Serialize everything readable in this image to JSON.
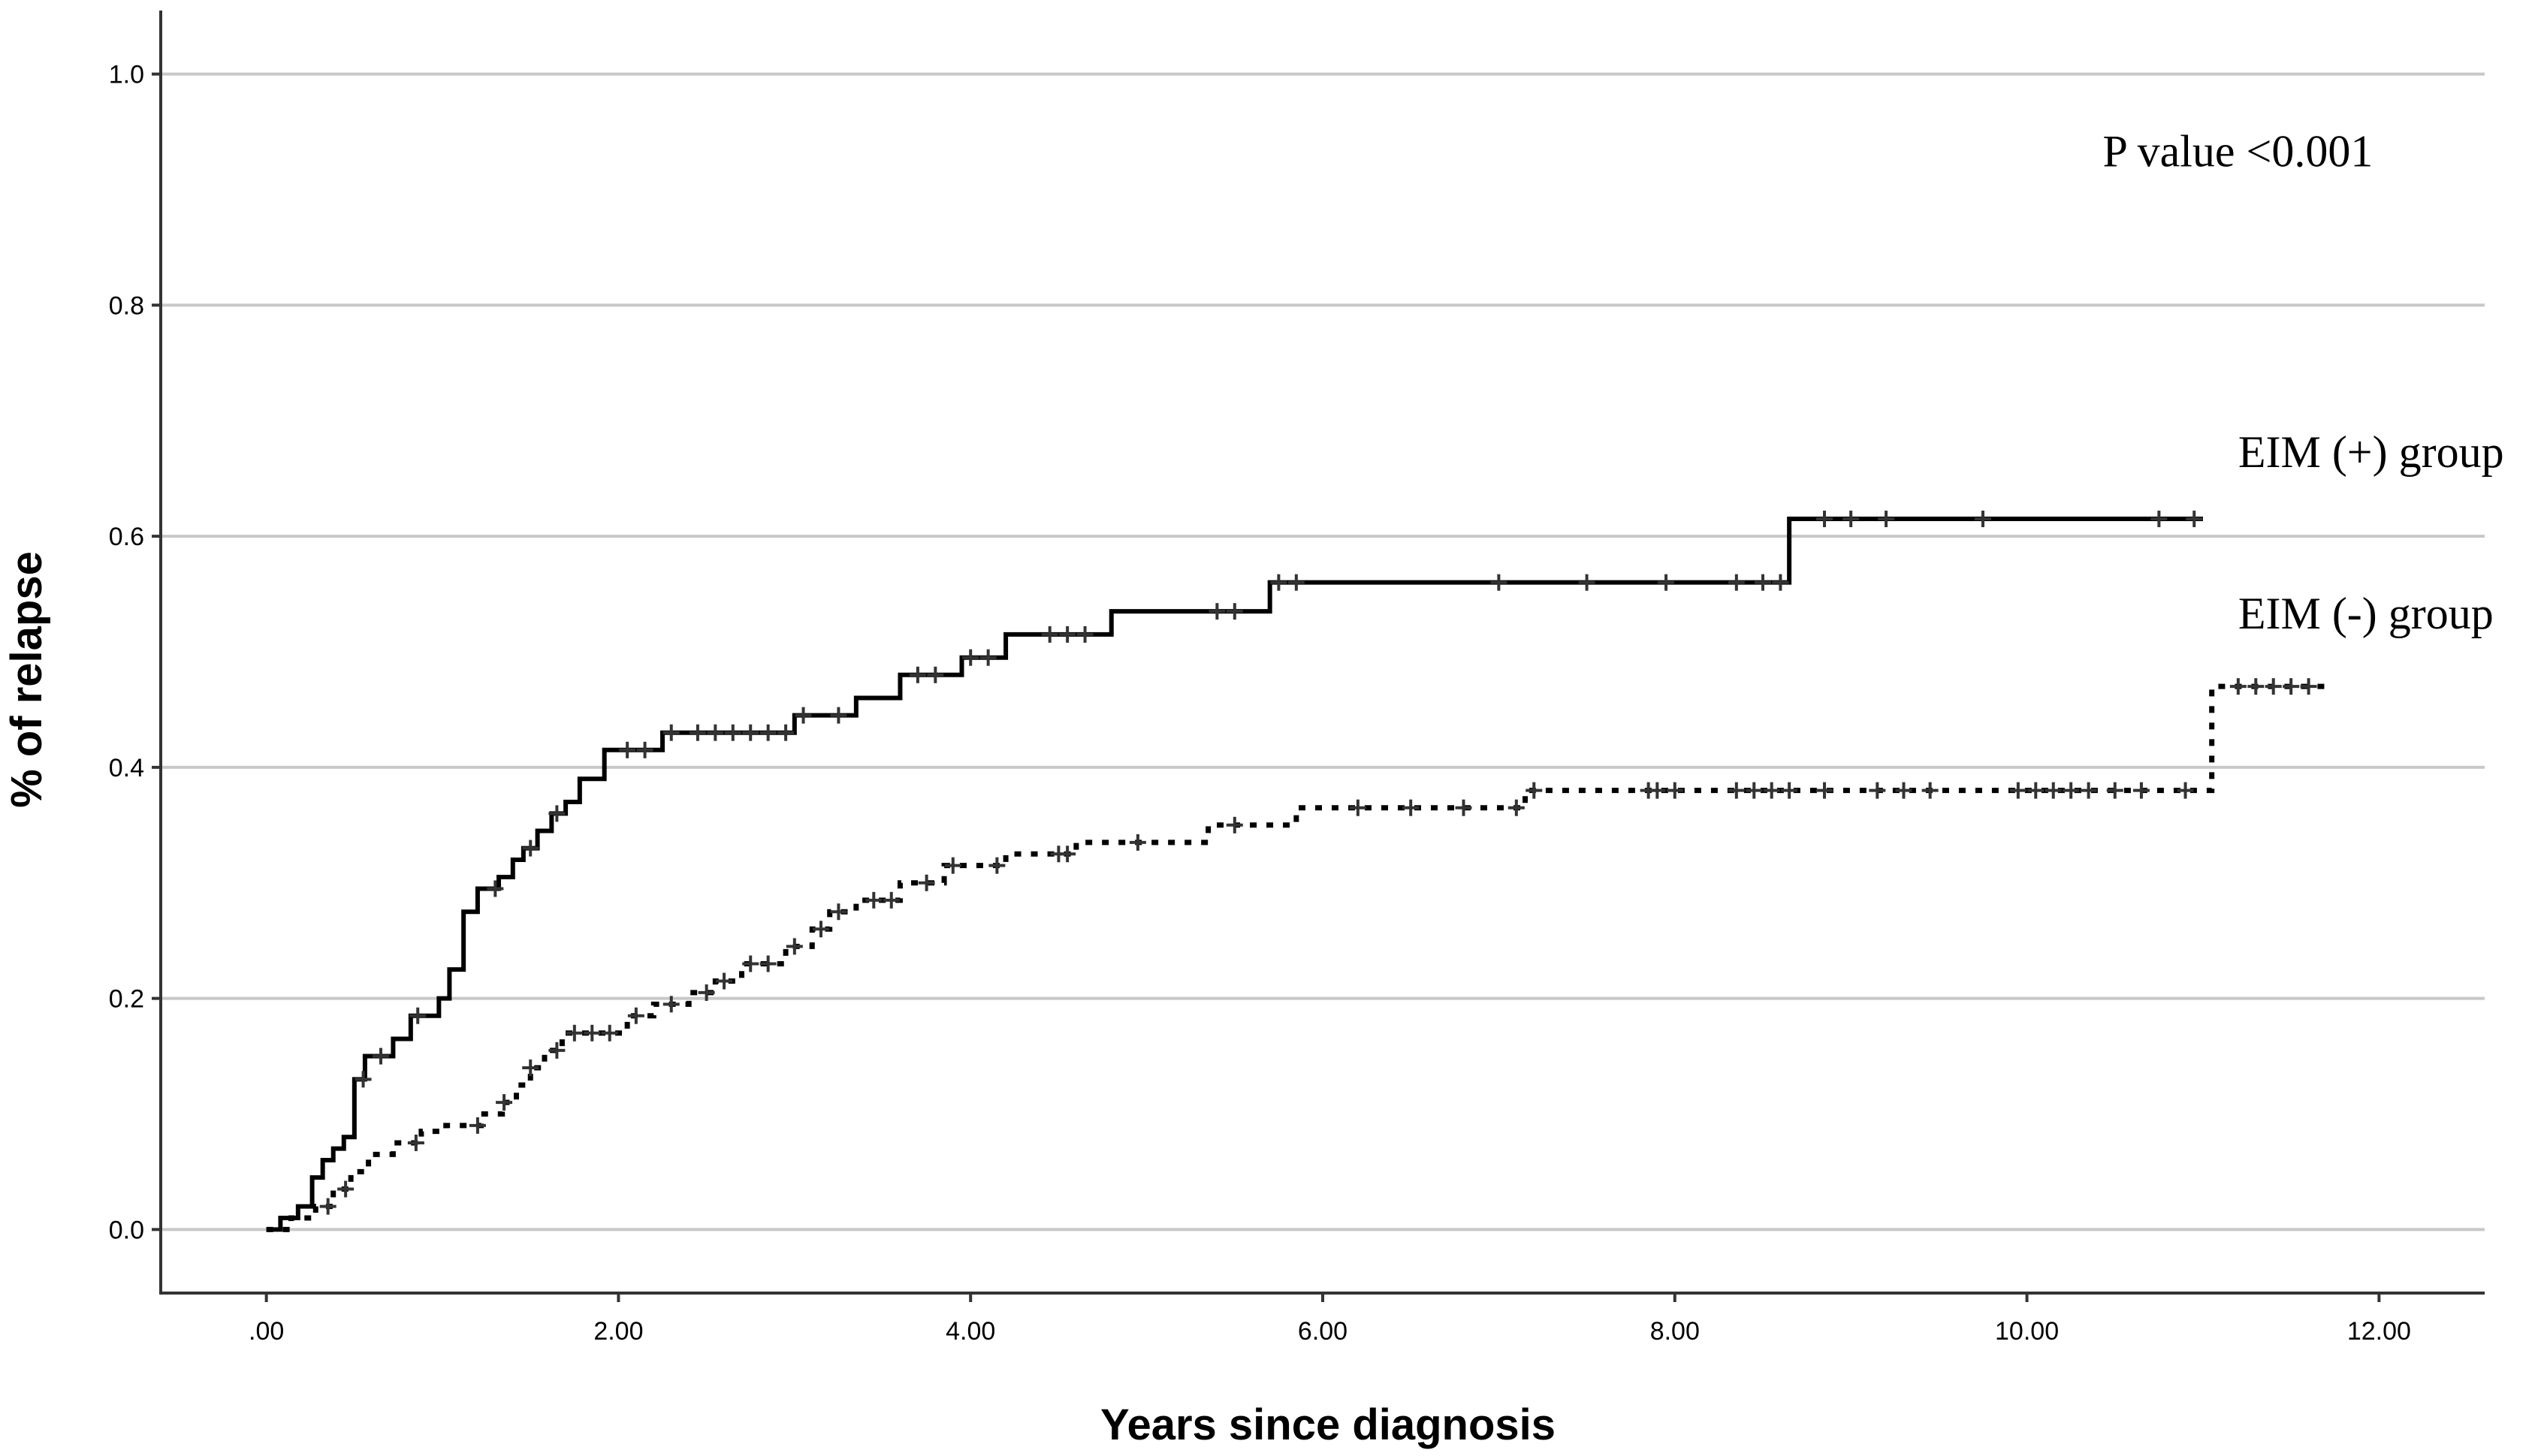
{
  "chart_data": {
    "type": "line",
    "title": "",
    "xlabel": "Years since diagnosis",
    "ylabel": "% of relapse",
    "xlim": [
      -0.6,
      12.6
    ],
    "ylim": [
      -0.055,
      1.055
    ],
    "xticks": [
      0,
      2,
      4,
      6,
      8,
      10,
      12
    ],
    "xtick_labels": [
      ".00",
      "2.00",
      "4.00",
      "6.00",
      "8.00",
      "10.00",
      "12.00"
    ],
    "yticks": [
      0,
      0.2,
      0.4,
      0.6,
      0.8,
      1.0
    ],
    "ytick_labels": [
      "0.0",
      "0.2",
      "0.4",
      "0.6",
      "0.8",
      "1.0"
    ],
    "grid": "horizontal",
    "annotations": [
      {
        "text": "P value <0.001",
        "x": 12.0,
        "y": 0.92
      },
      {
        "text": "EIM (+) group",
        "x": 11.2,
        "y": 0.66
      },
      {
        "text": "EIM (-) group",
        "x": 11.2,
        "y": 0.52
      }
    ],
    "series": [
      {
        "label_ref": "EIM (+) group",
        "style": "solid",
        "color": "#000000",
        "steps": [
          [
            0,
            0
          ],
          [
            0.08,
            0.01
          ],
          [
            0.18,
            0.02
          ],
          [
            0.26,
            0.045
          ],
          [
            0.32,
            0.06
          ],
          [
            0.38,
            0.07
          ],
          [
            0.44,
            0.08
          ],
          [
            0.5,
            0.13
          ],
          [
            0.56,
            0.15
          ],
          [
            0.72,
            0.165
          ],
          [
            0.82,
            0.185
          ],
          [
            0.98,
            0.2
          ],
          [
            1.04,
            0.225
          ],
          [
            1.12,
            0.275
          ],
          [
            1.2,
            0.295
          ],
          [
            1.32,
            0.305
          ],
          [
            1.4,
            0.32
          ],
          [
            1.46,
            0.33
          ],
          [
            1.54,
            0.345
          ],
          [
            1.62,
            0.36
          ],
          [
            1.7,
            0.37
          ],
          [
            1.78,
            0.39
          ],
          [
            1.92,
            0.415
          ],
          [
            2.25,
            0.43
          ],
          [
            3.0,
            0.445
          ],
          [
            3.35,
            0.46
          ],
          [
            3.6,
            0.48
          ],
          [
            3.95,
            0.495
          ],
          [
            4.2,
            0.515
          ],
          [
            4.8,
            0.535
          ],
          [
            5.7,
            0.56
          ],
          [
            8.65,
            0.615
          ],
          [
            11.0,
            0.615
          ]
        ],
        "censor_x": [
          0.55,
          0.65,
          0.86,
          1.3,
          1.5,
          1.65,
          2.05,
          2.15,
          2.3,
          2.45,
          2.55,
          2.65,
          2.75,
          2.85,
          2.95,
          3.05,
          3.25,
          3.7,
          3.8,
          4.0,
          4.1,
          4.45,
          4.55,
          4.65,
          5.4,
          5.5,
          5.75,
          5.85,
          7.0,
          7.5,
          7.95,
          8.35,
          8.5,
          8.6,
          8.85,
          9.0,
          9.2,
          9.75,
          10.75,
          10.95
        ]
      },
      {
        "label_ref": "EIM (-) group",
        "style": "dotted",
        "color": "#000000",
        "steps": [
          [
            0,
            0
          ],
          [
            0.14,
            0.01
          ],
          [
            0.28,
            0.02
          ],
          [
            0.38,
            0.035
          ],
          [
            0.48,
            0.05
          ],
          [
            0.58,
            0.065
          ],
          [
            0.72,
            0.075
          ],
          [
            0.88,
            0.085
          ],
          [
            1.02,
            0.09
          ],
          [
            1.22,
            0.1
          ],
          [
            1.34,
            0.11
          ],
          [
            1.42,
            0.125
          ],
          [
            1.5,
            0.14
          ],
          [
            1.58,
            0.155
          ],
          [
            1.68,
            0.17
          ],
          [
            1.8,
            0.17
          ],
          [
            2.05,
            0.185
          ],
          [
            2.2,
            0.195
          ],
          [
            2.4,
            0.205
          ],
          [
            2.55,
            0.215
          ],
          [
            2.7,
            0.23
          ],
          [
            2.95,
            0.245
          ],
          [
            3.1,
            0.26
          ],
          [
            3.2,
            0.275
          ],
          [
            3.35,
            0.285
          ],
          [
            3.6,
            0.3
          ],
          [
            3.85,
            0.315
          ],
          [
            4.2,
            0.325
          ],
          [
            4.6,
            0.335
          ],
          [
            5.35,
            0.35
          ],
          [
            5.85,
            0.365
          ],
          [
            7.15,
            0.38
          ],
          [
            11.05,
            0.47
          ],
          [
            11.7,
            0.47
          ]
        ],
        "censor_x": [
          0.35,
          0.45,
          0.85,
          1.2,
          1.35,
          1.5,
          1.65,
          1.75,
          1.85,
          1.95,
          2.1,
          2.3,
          2.5,
          2.6,
          2.75,
          2.85,
          3.0,
          3.15,
          3.25,
          3.45,
          3.55,
          3.75,
          3.9,
          4.15,
          4.5,
          4.55,
          4.95,
          5.5,
          6.2,
          6.5,
          6.8,
          7.1,
          7.2,
          7.85,
          7.9,
          8.0,
          8.35,
          8.45,
          8.55,
          8.65,
          8.85,
          9.15,
          9.3,
          9.45,
          9.95,
          10.05,
          10.15,
          10.25,
          10.35,
          10.5,
          10.65,
          10.9,
          11.2,
          11.3,
          11.4,
          11.5,
          11.6
        ]
      }
    ]
  }
}
